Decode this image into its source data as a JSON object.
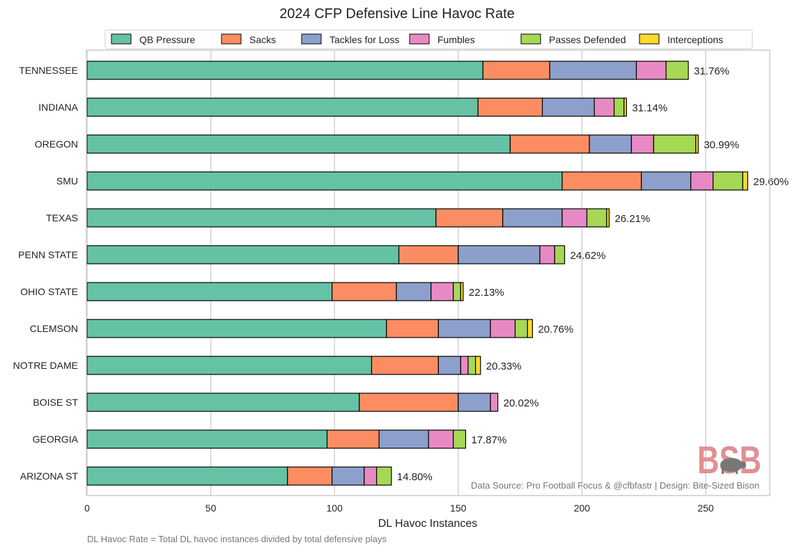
{
  "chart_data": {
    "type": "bar",
    "orientation": "horizontal",
    "stacked": true,
    "title": "2024 CFP Defensive Line Havoc Rate",
    "xlabel": "DL Havoc Instances",
    "ylabel": "",
    "xlim": [
      0,
      276
    ],
    "xticks": [
      0,
      50,
      100,
      150,
      200,
      250
    ],
    "grid": "vertical",
    "legend_position": "top",
    "categories": [
      "TENNESSEE",
      "INDIANA",
      "OREGON",
      "SMU",
      "TEXAS",
      "PENN STATE",
      "OHIO STATE",
      "CLEMSON",
      "NOTRE DAME",
      "BOISE ST",
      "GEORGIA",
      "ARIZONA ST"
    ],
    "series": [
      {
        "name": "QB Pressure",
        "color": "#66c2a5",
        "values": [
          160,
          158,
          171,
          192,
          141,
          126,
          99,
          121,
          115,
          110,
          97,
          81
        ]
      },
      {
        "name": "Sacks",
        "color": "#fc8d62",
        "values": [
          27,
          26,
          32,
          32,
          27,
          24,
          26,
          21,
          27,
          40,
          21,
          18
        ]
      },
      {
        "name": "Tackles for Loss",
        "color": "#8da0cb",
        "values": [
          35,
          21,
          17,
          20,
          24,
          33,
          14,
          21,
          9,
          13,
          20,
          13
        ]
      },
      {
        "name": "Fumbles",
        "color": "#e78ac3",
        "values": [
          12,
          8,
          9,
          9,
          10,
          6,
          9,
          10,
          3,
          3,
          10,
          5
        ]
      },
      {
        "name": "Passes Defended",
        "color": "#a6d854",
        "values": [
          9,
          4,
          17,
          12,
          8,
          4,
          3,
          5,
          3,
          0,
          5,
          6
        ]
      },
      {
        "name": "Interceptions",
        "color": "#ffd92f",
        "values": [
          0,
          1,
          1,
          2,
          1,
          0,
          1,
          2,
          2,
          0,
          0,
          0
        ]
      }
    ],
    "data_labels": [
      "31.76%",
      "31.14%",
      "30.99%",
      "29.60%",
      "26.21%",
      "24.62%",
      "22.13%",
      "20.76%",
      "20.33%",
      "20.02%",
      "17.87%",
      "14.80%"
    ],
    "annotations": {
      "source": "Data Source: Pro Football Focus & @cfbfastr | Design: Bite-Sized Bison",
      "footnote": "DL Havoc Rate = Total DL havoc instances divided by total defensive plays",
      "logo_text": "BSB"
    }
  }
}
